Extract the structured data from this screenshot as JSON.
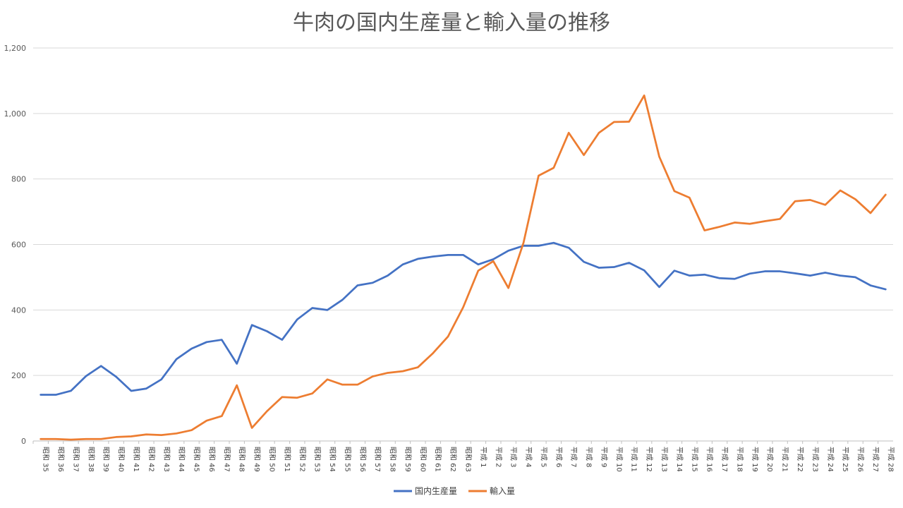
{
  "chart_data": {
    "type": "line",
    "title": "牛肉の国内生産量と輸入量の推移",
    "xlabel": "",
    "ylabel": "",
    "ylim": [
      0,
      1200
    ],
    "yticks": [
      0,
      200,
      400,
      600,
      800,
      1000,
      1200
    ],
    "ytick_labels": [
      "0",
      "200",
      "400",
      "600",
      "800",
      "1,000",
      "1,200"
    ],
    "grid": true,
    "legend": "bottom",
    "categories": [
      "昭和 35",
      "昭和 36",
      "昭和 37",
      "昭和 38",
      "昭和 39",
      "昭和 40",
      "昭和 41",
      "昭和 42",
      "昭和 43",
      "昭和 44",
      "昭和 45",
      "昭和 46",
      "昭和 47",
      "昭和 48",
      "昭和 49",
      "昭和 50",
      "昭和 51",
      "昭和 52",
      "昭和 53",
      "昭和 54",
      "昭和 55",
      "昭和 56",
      "昭和 57",
      "昭和 58",
      "昭和 59",
      "昭和 60",
      "昭和 61",
      "昭和 62",
      "昭和 63",
      "平成 1",
      "平成 2",
      "平成 3",
      "平成 4",
      "平成 5",
      "平成 6",
      "平成 7",
      "平成 8",
      "平成 9",
      "平成 10",
      "平成 11",
      "平成 12",
      "平成 13",
      "平成 14",
      "平成 15",
      "平成 16",
      "平成 17",
      "平成 18",
      "平成 19",
      "平成 20",
      "平成 21",
      "平成 22",
      "平成 23",
      "平成 24",
      "平成 25",
      "平成 26",
      "平成 27",
      "平成 28"
    ],
    "series": [
      {
        "name": "国内生産量",
        "color": "#4472C4",
        "values": [
          141,
          141,
          153,
          198,
          229,
          196,
          153,
          160,
          188,
          250,
          282,
          302,
          309,
          236,
          354,
          335,
          309,
          371,
          406,
          400,
          431,
          475,
          483,
          505,
          539,
          556,
          563,
          568,
          568,
          539,
          555,
          581,
          596,
          596,
          605,
          590,
          547,
          529,
          531,
          544,
          521,
          470,
          520,
          505,
          508,
          497,
          495,
          511,
          518,
          518,
          512,
          505,
          514,
          505,
          500,
          475,
          463
        ]
      },
      {
        "name": "輸入量",
        "color": "#ED7D31",
        "values": [
          6,
          6,
          4,
          6,
          6,
          12,
          14,
          20,
          18,
          23,
          33,
          62,
          76,
          170,
          40,
          91,
          134,
          132,
          145,
          188,
          172,
          172,
          197,
          208,
          213,
          225,
          268,
          319,
          408,
          520,
          549,
          467,
          605,
          810,
          834,
          941,
          873,
          941,
          974,
          975,
          1055,
          868,
          763,
          743,
          643,
          654,
          667,
          663,
          671,
          678,
          732,
          736,
          721,
          765,
          738,
          696,
          752
        ]
      }
    ]
  }
}
